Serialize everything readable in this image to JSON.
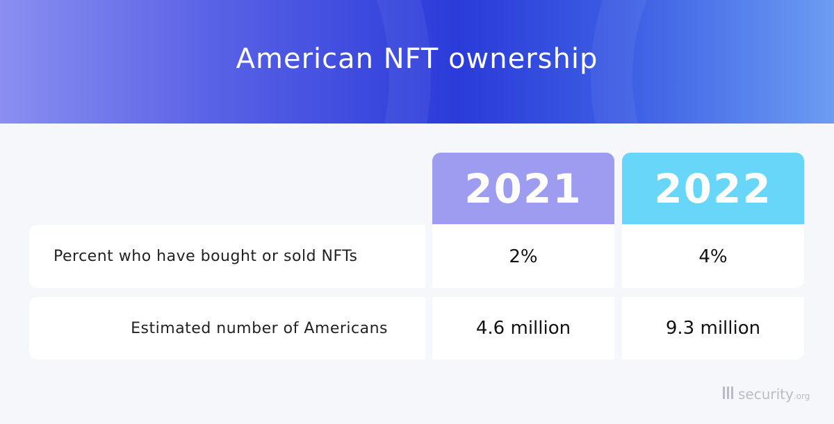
{
  "header": {
    "title": "American NFT ownership"
  },
  "table": {
    "columns": [
      "2021",
      "2022"
    ],
    "rows": [
      {
        "label": "Percent who have bought or sold NFTs",
        "cells": [
          "2%",
          "4%"
        ]
      },
      {
        "label": "Estimated number of Americans",
        "cells": [
          "4.6 million",
          "9.3 million"
        ]
      }
    ]
  },
  "footer": {
    "logo": "security",
    "logo_suffix": ".org"
  }
}
